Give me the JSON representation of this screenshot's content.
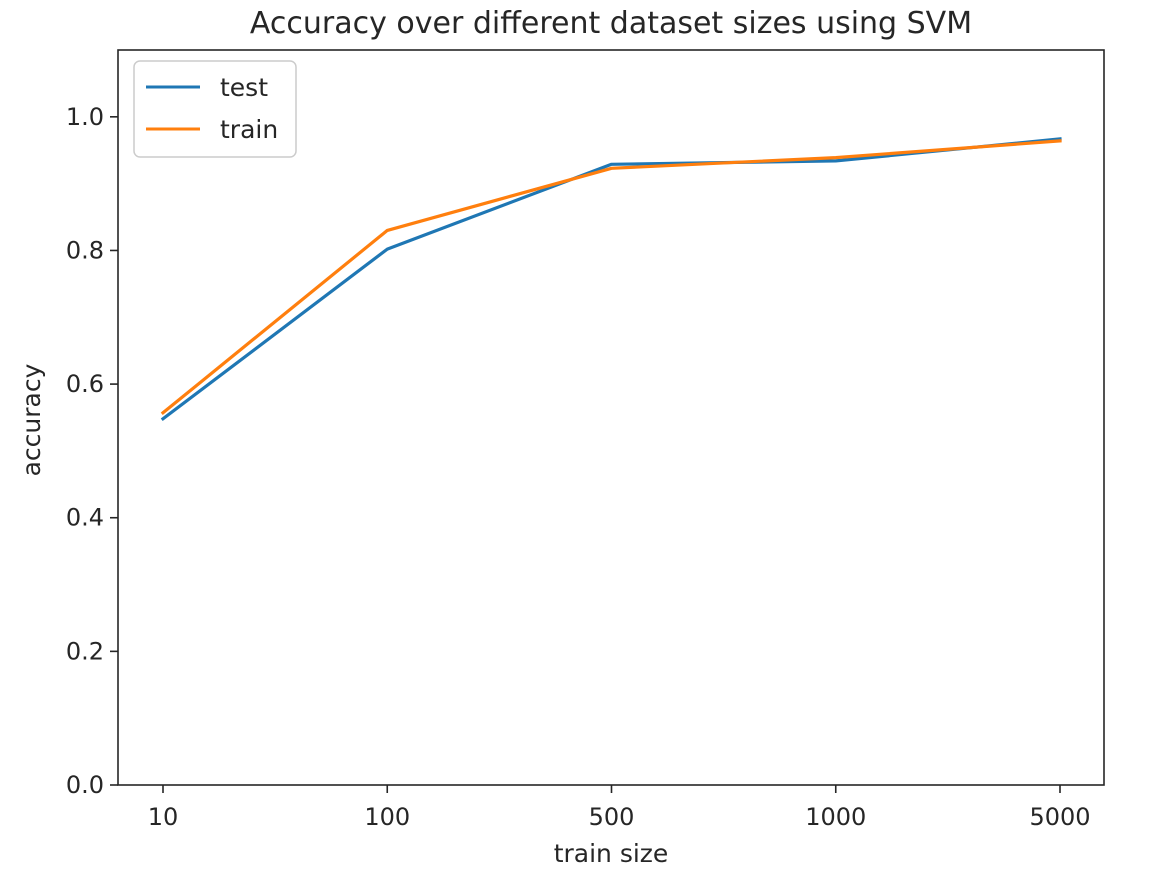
{
  "chart_data": {
    "type": "line",
    "title": "Accuracy over different dataset sizes using SVM",
    "xlabel": "train size",
    "ylabel": "accuracy",
    "categories": [
      "10",
      "100",
      "500",
      "1000",
      "5000"
    ],
    "ylim": [
      0,
      1.1
    ],
    "yticks": [
      "0.0",
      "0.2",
      "0.4",
      "0.6",
      "0.8",
      "1.0"
    ],
    "grid": false,
    "legend_position": "top-left",
    "series": [
      {
        "name": "test",
        "color": "#1f77b4",
        "values": [
          0.548,
          0.802,
          0.929,
          0.934,
          0.967
        ]
      },
      {
        "name": "train",
        "color": "#ff7f0e",
        "values": [
          0.557,
          0.83,
          0.923,
          0.939,
          0.964
        ]
      }
    ]
  }
}
